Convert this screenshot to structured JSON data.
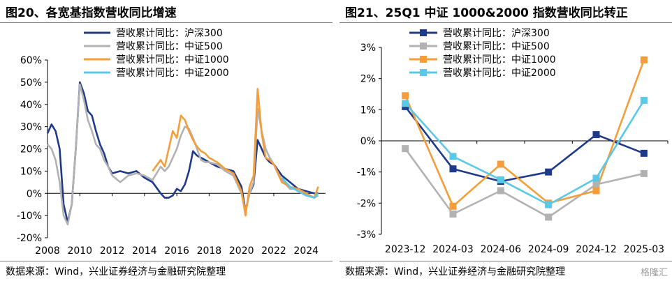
{
  "source_text": "数据来源：Wind，兴业证券经济与金融研究院整理",
  "watermark": "格隆汇",
  "chart_data": [
    {
      "type": "line",
      "title": "图20、各宽基指数营收同比增速",
      "x_tick_labels": [
        "2008",
        "2010",
        "2012",
        "2014",
        "2016",
        "2018",
        "2020",
        "2022",
        "2024"
      ],
      "x_ticks": [
        2008,
        2010,
        2012,
        2014,
        2016,
        2018,
        2020,
        2022,
        2024
      ],
      "xlim": [
        2008,
        2025.2
      ],
      "y_tick_labels": [
        "60%",
        "50%",
        "40%",
        "30%",
        "20%",
        "10%",
        "0%",
        "-10%",
        "-20%"
      ],
      "y_ticks": [
        60,
        50,
        40,
        30,
        20,
        10,
        0,
        -10,
        -20
      ],
      "ylim": [
        -20,
        60
      ],
      "xlabel": "",
      "ylabel": "",
      "legend_position": "top-left",
      "grid": false,
      "series": [
        {
          "name": "营收累计同比：沪深300",
          "color": "#1f3a8a",
          "x": [
            2008.0,
            2008.25,
            2008.5,
            2008.75,
            2009.0,
            2009.25,
            2009.5,
            2009.75,
            2010.0,
            2010.25,
            2010.5,
            2010.75,
            2011.0,
            2011.25,
            2011.5,
            2011.75,
            2012.0,
            2012.5,
            2013.0,
            2013.5,
            2014.0,
            2014.5,
            2015.0,
            2015.25,
            2015.5,
            2015.75,
            2016.0,
            2016.25,
            2016.5,
            2016.75,
            2017.0,
            2017.25,
            2017.5,
            2017.75,
            2018.0,
            2018.5,
            2019.0,
            2019.5,
            2020.0,
            2020.25,
            2020.5,
            2020.75,
            2021.0,
            2021.25,
            2021.5,
            2021.75,
            2022.0,
            2022.5,
            2023.0,
            2023.5,
            2024.0,
            2024.5,
            2024.75
          ],
          "y": [
            27,
            31,
            28,
            20,
            -5,
            -13,
            -5,
            20,
            50,
            45,
            37,
            35,
            28,
            22,
            18,
            12,
            9,
            10,
            9,
            10,
            7,
            5,
            0,
            -2,
            -2,
            -1,
            2,
            1,
            4,
            10,
            19,
            17,
            16,
            15,
            14,
            12,
            11,
            10,
            3,
            -8,
            0,
            4,
            24,
            20,
            16,
            14,
            13,
            8,
            5,
            2,
            1,
            0,
            0
          ]
        },
        {
          "name": "营收累计同比：中证500",
          "color": "#b2b2b2",
          "x": [
            2008.0,
            2008.25,
            2008.5,
            2008.75,
            2009.0,
            2009.25,
            2009.5,
            2009.75,
            2010.0,
            2010.25,
            2010.5,
            2010.75,
            2011.0,
            2011.25,
            2011.5,
            2011.75,
            2012.0,
            2012.5,
            2013.0,
            2013.5,
            2014.0,
            2014.5,
            2015.0,
            2015.25,
            2015.5,
            2015.75,
            2016.0,
            2016.25,
            2016.5,
            2016.75,
            2017.0,
            2017.25,
            2017.5,
            2017.75,
            2018.0,
            2018.5,
            2019.0,
            2019.5,
            2020.0,
            2020.25,
            2020.5,
            2020.75,
            2021.0,
            2021.25,
            2021.5,
            2021.75,
            2022.0,
            2022.5,
            2023.0,
            2023.5,
            2024.0,
            2024.5,
            2024.75
          ],
          "y": [
            22,
            20,
            15,
            5,
            -10,
            -14,
            -5,
            20,
            49,
            42,
            33,
            28,
            22,
            20,
            15,
            12,
            8,
            5,
            8,
            9,
            8,
            6,
            12,
            10,
            12,
            16,
            20,
            26,
            30,
            29,
            25,
            20,
            15,
            14,
            14,
            13,
            10,
            8,
            0,
            -8,
            0,
            5,
            38,
            28,
            20,
            16,
            13,
            6,
            2,
            2,
            0,
            -2,
            -1
          ]
        },
        {
          "name": "营收累计同比：中证1000",
          "color": "#f59d38",
          "x": [
            2014.5,
            2015.0,
            2015.25,
            2015.5,
            2015.75,
            2016.0,
            2016.25,
            2016.5,
            2016.75,
            2017.0,
            2017.25,
            2017.5,
            2017.75,
            2018.0,
            2018.5,
            2019.0,
            2019.5,
            2020.0,
            2020.25,
            2020.5,
            2020.75,
            2021.0,
            2021.25,
            2021.5,
            2021.75,
            2022.0,
            2022.5,
            2023.0,
            2023.5,
            2024.0,
            2024.5,
            2024.75
          ],
          "y": [
            10,
            15,
            12,
            20,
            28,
            25,
            35,
            33,
            28,
            24,
            21,
            19,
            18,
            16,
            14,
            11,
            9,
            1,
            -10,
            3,
            8,
            47,
            27,
            16,
            15,
            13,
            5,
            3,
            2,
            0,
            -2,
            3
          ]
        },
        {
          "name": "营收累计同比：中证2000",
          "color": "#5bc8e8",
          "x": [
            2022.5,
            2023.0,
            2023.5,
            2024.0,
            2024.5,
            2024.75
          ],
          "y": [
            7,
            3,
            1,
            -1,
            -2,
            0
          ]
        }
      ]
    },
    {
      "type": "line",
      "title": "图21、25Q1 中证 1000&2000 指数营收同比转正",
      "categories": [
        "2023-12",
        "2024-03",
        "2024-06",
        "2024-09",
        "2024-12",
        "2025-03"
      ],
      "y_tick_labels": [
        "3%",
        "2%",
        "1%",
        "0%",
        "-1%",
        "-2%",
        "-3%"
      ],
      "y_ticks": [
        3,
        2,
        1,
        0,
        -1,
        -2,
        -3
      ],
      "ylim": [
        -3,
        3
      ],
      "xlabel": "",
      "ylabel": "",
      "legend_position": "top-left",
      "grid": false,
      "series": [
        {
          "name": "营收累计同比：沪深300",
          "color": "#1f3a8a",
          "values": [
            1.1,
            -0.9,
            -1.3,
            -1.0,
            0.2,
            -0.4
          ]
        },
        {
          "name": "营收累计同比：中证500",
          "color": "#b2b2b2",
          "values": [
            -0.25,
            -2.35,
            -1.6,
            -2.45,
            -1.4,
            -1.05
          ]
        },
        {
          "name": "营收累计同比：中证1000",
          "color": "#f59d38",
          "values": [
            1.45,
            -2.1,
            -0.75,
            -2.0,
            -1.6,
            2.6
          ]
        },
        {
          "name": "营收累计同比：中证2000",
          "color": "#5bc8e8",
          "values": [
            1.2,
            -0.5,
            -1.25,
            -2.05,
            -1.2,
            1.3
          ]
        }
      ]
    }
  ]
}
